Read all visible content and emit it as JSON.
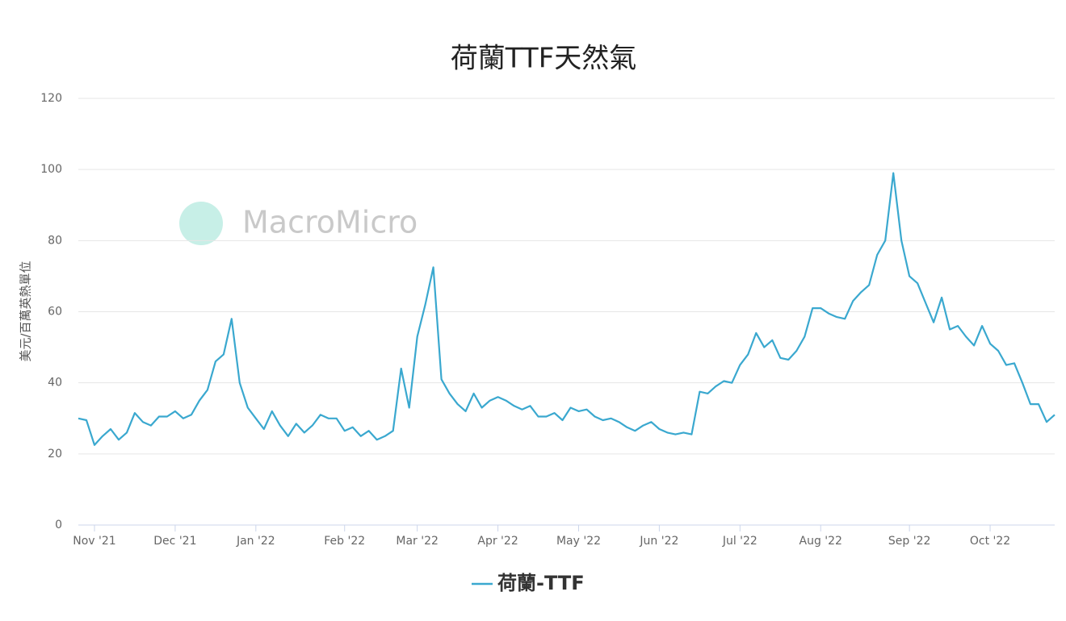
{
  "chart_data": {
    "type": "line",
    "title": "荷蘭TTF天然氣",
    "y_label": "美元/百萬英熱單位",
    "watermark": "MacroMicro",
    "categories": [
      null,
      null,
      "Nov '21",
      null,
      null,
      null,
      null,
      null,
      null,
      null,
      null,
      null,
      "Dec '21",
      null,
      null,
      null,
      null,
      null,
      null,
      null,
      null,
      null,
      "Jan '22",
      null,
      null,
      null,
      null,
      null,
      null,
      null,
      null,
      null,
      null,
      "Feb '22",
      null,
      null,
      null,
      null,
      null,
      null,
      null,
      null,
      "Mar '22",
      null,
      null,
      null,
      null,
      null,
      null,
      null,
      null,
      null,
      "Apr '22",
      null,
      null,
      null,
      null,
      null,
      null,
      null,
      null,
      null,
      "May '22",
      null,
      null,
      null,
      null,
      null,
      null,
      null,
      null,
      null,
      "Jun '22",
      null,
      null,
      null,
      null,
      null,
      null,
      null,
      null,
      null,
      "Jul '22",
      null,
      null,
      null,
      null,
      null,
      null,
      null,
      null,
      null,
      "Aug '22",
      null,
      null,
      null,
      null,
      null,
      null,
      null,
      null,
      null,
      null,
      "Sep '22",
      null,
      null,
      null,
      null,
      null,
      null,
      null,
      null,
      null,
      "Oct '22",
      null,
      null,
      null,
      null,
      null,
      null,
      null,
      null
    ],
    "series": [
      {
        "name": "荷蘭-TTF",
        "color": "#3aa8cf",
        "values": [
          30,
          29.5,
          22.5,
          25,
          27,
          24,
          26,
          31.5,
          29,
          28,
          30.5,
          30.5,
          32,
          30,
          31,
          35,
          38,
          46,
          48,
          58,
          40,
          33,
          30,
          27,
          32,
          28,
          25,
          28.5,
          26,
          28,
          31,
          30,
          30,
          26.5,
          27.5,
          25,
          26.5,
          24,
          25,
          26.5,
          44,
          33,
          53,
          62,
          72.5,
          41,
          37,
          34,
          32,
          37,
          33,
          35,
          36,
          35,
          33.5,
          32.5,
          33.5,
          30.5,
          30.5,
          31.5,
          29.5,
          33,
          32,
          32.5,
          30.5,
          29.5,
          30,
          29,
          27.5,
          26.5,
          28,
          29,
          27,
          26,
          25.5,
          26,
          25.5,
          37.5,
          37,
          39,
          40.5,
          40,
          45,
          48,
          54,
          50,
          52,
          47,
          46.5,
          49,
          53,
          61,
          61,
          59.5,
          58.5,
          58,
          63,
          65.5,
          67.5,
          76,
          80,
          99,
          80,
          70,
          68,
          62.5,
          57,
          64,
          55,
          56,
          53,
          50.5,
          56,
          51,
          49,
          45,
          45.5,
          40,
          34,
          34,
          29,
          31
        ]
      }
    ],
    "ylim": [
      0,
      120
    ],
    "yticks": [
      0,
      20,
      40,
      60,
      80,
      100,
      120
    ],
    "grid": true,
    "legend": "bottom"
  }
}
